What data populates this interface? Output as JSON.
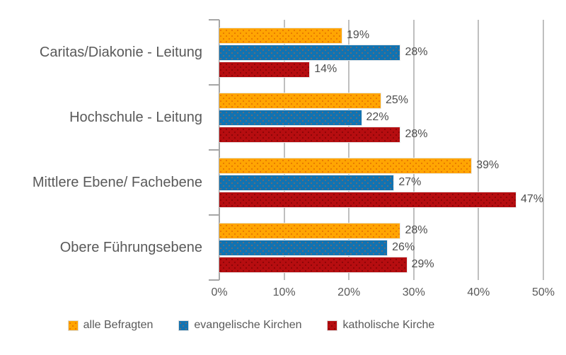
{
  "chart_data": {
    "type": "bar",
    "orientation": "horizontal",
    "title": "",
    "categories": [
      "Caritas/Diakonie - Leitung",
      "Hochschule - Leitung",
      "Mittlere Ebene/ Fachebene",
      "Obere Führungsebene"
    ],
    "series": [
      {
        "name": "alle Befragten",
        "color": "#FFA502",
        "dot_color": "#D2500096",
        "values": [
          19,
          25,
          39,
          28
        ]
      },
      {
        "name": "evangelische Kirchen",
        "color": "#1173B2",
        "dot_color": "#C864328C",
        "values": [
          28,
          22,
          27,
          26
        ]
      },
      {
        "name": "katholische Kirche",
        "color": "#B60D10",
        "dot_color": "#64000096",
        "values": [
          14,
          28,
          47,
          29
        ]
      }
    ],
    "unit": "%",
    "xlim": [
      0,
      50
    ],
    "x_ticks": [
      "0%",
      "10%",
      "20%",
      "30%",
      "40%",
      "50%"
    ],
    "grid": true,
    "legend_position": "bottom"
  },
  "palette": {
    "background": "#FFFFFF",
    "grid": "#BFBFBF",
    "axis": "#A6A6A6",
    "text": "#595959",
    "value_text": "#4D4D4D",
    "bar_border": "#E9E9E9"
  }
}
